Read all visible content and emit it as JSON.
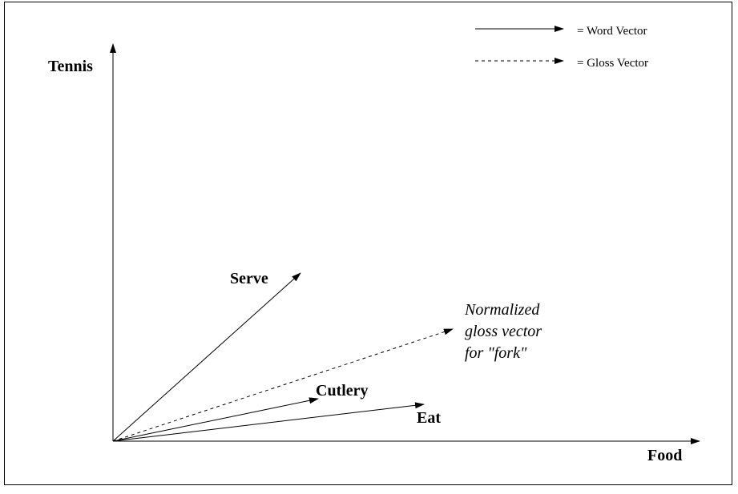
{
  "axes": {
    "x_label": "Food",
    "y_label": "Tennis"
  },
  "legend": {
    "word_vector": "= Word Vector",
    "gloss_vector": "= Gloss Vector"
  },
  "vectors": [
    {
      "label": "Serve",
      "kind": "word"
    },
    {
      "label": "Cutlery",
      "kind": "word"
    },
    {
      "label": "Eat",
      "kind": "word"
    },
    {
      "label": "Normalized gloss vector for \"fork\"",
      "kind": "gloss"
    }
  ],
  "annotation": {
    "line1": "Normalized",
    "line2": "gloss vector",
    "line3": "for \"fork\""
  },
  "colors": {
    "ink": "#000000",
    "background": "#ffffff"
  }
}
